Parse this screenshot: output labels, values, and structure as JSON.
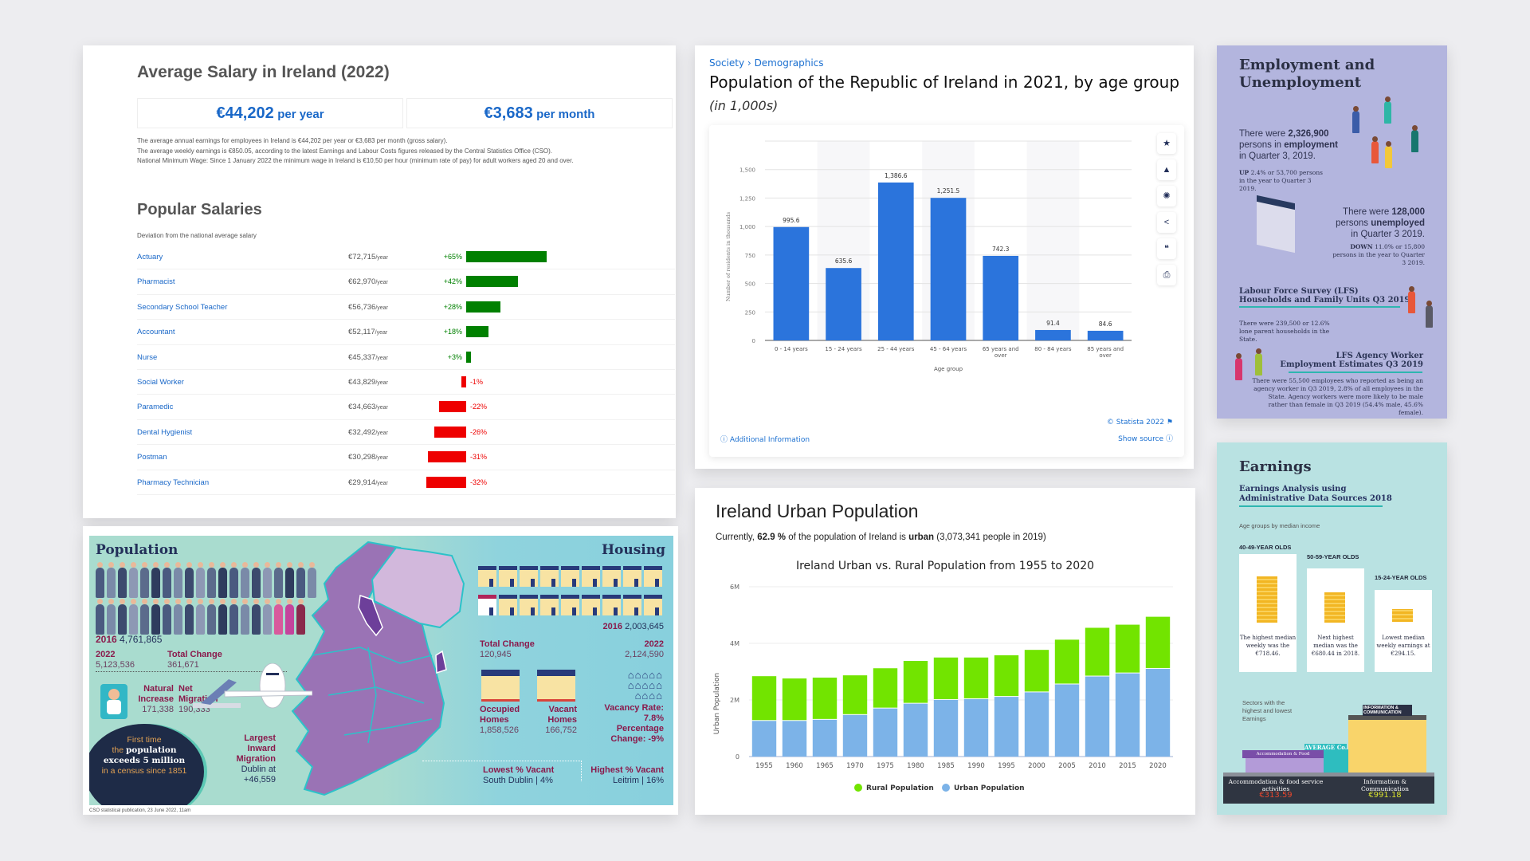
{
  "salary": {
    "title": "Average Salary in Ireland (2022)",
    "per_year_value": "€44,202",
    "per_year_unit": "per year",
    "per_month_value": "€3,683",
    "per_month_unit": "per month",
    "notes": [
      "The average annual earnings for employees in Ireland is €44,202 per year or €3,683 per month (gross salary).",
      "The average weekly earnings is €850.05, according to the latest Earnings and Labour Costs figures released by the Central Statistics Office (CSO).",
      "National Minimum Wage: Since 1 January 2022 the minimum wage in Ireland is €10,50 per hour (minimum rate of pay) for adult workers aged 20 and over."
    ],
    "popular_title": "Popular Salaries",
    "deviation_label": "Deviation from the national average salary",
    "year_suffix": "/year",
    "rows": [
      {
        "job": "Actuary",
        "amount": "€72,715",
        "pct": 65,
        "pct_label": "+65%"
      },
      {
        "job": "Pharmacist",
        "amount": "€62,970",
        "pct": 42,
        "pct_label": "+42%"
      },
      {
        "job": "Secondary School Teacher",
        "amount": "€56,736",
        "pct": 28,
        "pct_label": "+28%"
      },
      {
        "job": "Accountant",
        "amount": "€52,117",
        "pct": 18,
        "pct_label": "+18%"
      },
      {
        "job": "Nurse",
        "amount": "€45,337",
        "pct": 3,
        "pct_label": "+3%"
      },
      {
        "job": "Social Worker",
        "amount": "€43,829",
        "pct": -1,
        "pct_label": "-1%"
      },
      {
        "job": "Paramedic",
        "amount": "€34,663",
        "pct": -22,
        "pct_label": "-22%"
      },
      {
        "job": "Dental Hygienist",
        "amount": "€32,492",
        "pct": -26,
        "pct_label": "-26%"
      },
      {
        "job": "Postman",
        "amount": "€30,298",
        "pct": -31,
        "pct_label": "-31%"
      },
      {
        "job": "Pharmacy Technician",
        "amount": "€29,914",
        "pct": -32,
        "pct_label": "-32%"
      }
    ],
    "colors": {
      "positive": "#008000",
      "negative": "#ee0000",
      "link": "#1a68c8"
    }
  },
  "cso": {
    "population_heading": "Population",
    "housing_heading": "Housing",
    "pop_2016_label": "2016",
    "pop_2016_value": "4,761,865",
    "pop_2022_label": "2022",
    "pop_2022_value": "5,123,536",
    "pop_change_label": "Total Change",
    "pop_change_value": "361,671",
    "natural_increase_label": "Natural Increase",
    "natural_increase_value": "171,338",
    "net_migration_label": "Net Migration",
    "net_migration_value": "190,333",
    "callout_line1": "First time",
    "callout_line2_pre": "the",
    "callout_line2_bold": "population",
    "callout_line3": "exceeds 5 million",
    "callout_line4": "in a census since 1851",
    "inward_label": "Largest Inward Migration",
    "inward_value": "Dublin at +46,559",
    "housing_2016_label": "2016",
    "housing_2016_value": "2,003,645",
    "housing_change_label": "Total Change",
    "housing_change_value": "120,945",
    "housing_2022_label": "2022",
    "housing_2022_value": "2,124,590",
    "occupied_label": "Occupied Homes",
    "occupied_value": "1,858,526",
    "vacant_label": "Vacant Homes",
    "vacant_value": "166,752",
    "vacancy_rate": "Vacancy Rate: 7.8%",
    "vacancy_change": "Percentage Change: -9%",
    "lowest_label": "Lowest % Vacant",
    "lowest_value": "South Dublin | 4%",
    "highest_label": "Highest % Vacant",
    "highest_value": "Leitrim | 16%",
    "footnote": "CSO statistical publication, 23 June 2022, 11am"
  },
  "statista": {
    "breadcrumb_1": "Society",
    "breadcrumb_sep": "›",
    "breadcrumb_2": "Demographics",
    "title": "Population of the Republic of Ireland in 2021, by age group",
    "unit": "(in 1,000s)",
    "icons": [
      "star-icon",
      "bell-icon",
      "gear-icon",
      "share-icon",
      "quote-icon",
      "print-icon"
    ],
    "additional_info": "Additional Information",
    "copyright": "© Statista 2022",
    "show_source": "Show source"
  },
  "urban": {
    "title": "Ireland Urban Population",
    "desc_pre": "Currently,",
    "desc_pct": "62.9 %",
    "desc_mid": "of the population of Ireland is",
    "desc_urban": "urban",
    "desc_post": "(3,073,341 people in 2019)"
  },
  "employment": {
    "title": "Employment and Unemployment",
    "emp_pre": "There were",
    "emp_value": "2,326,900",
    "emp_mid": "persons in",
    "emp_bold": "employment",
    "emp_post": "in Quarter 3, 2019.",
    "emp_up_bold": "UP",
    "emp_up": "2.4% or 53,700 persons in the year to Quarter 3 2019.",
    "unemp_pre": "There were",
    "unemp_value": "128,000",
    "unemp_mid": "persons",
    "unemp_bold": "unemployed",
    "unemp_post": "in Quarter 3 2019.",
    "unemp_down_bold": "DOWN",
    "unemp_down": "11.0% or 15,800 persons in the year to Quarter 3 2019.",
    "lfs_title_1": "Labour Force Survey (LFS)",
    "lfs_title_2": "Households and Family Units Q3 2019",
    "lfs_text": "There were 239,500 or 12.6% lone parent households in the State.",
    "agency_title_1": "LFS Agency Worker",
    "agency_title_2": "Employment Estimates Q3 2019",
    "agency_text": "There were 55,500 employees who reported as being an agency worker in Q3 2019, 2.8% of all employees in the State. Agency workers were more likely to be male rather than female in Q3 2019 (54.4% male, 45.6% female)."
  },
  "earnings": {
    "title": "Earnings",
    "subtitle_1": "Earnings Analysis using",
    "subtitle_2": "Administrative Data Sources 2018",
    "age_caption": "Age groups by median income",
    "groups": [
      {
        "label": "40-49-YEAR OLDS",
        "caption": "The highest median weekly was the €718.46."
      },
      {
        "label": "50-59-YEAR OLDS",
        "caption": "Next highest median was the €680.44 in 2018."
      },
      {
        "label": "15-24-YEAR OLDS",
        "caption": "Lowest median weekly earnings at €294.15."
      }
    ],
    "sectors_caption": "Sectors with the highest and lowest Earnings",
    "shop_sign": "Accommodation & Food",
    "avg_sign": "AVERAGE Co.",
    "office_sign": "INFORMATION & COMMUNICATION",
    "low_sector": "Accommodation & food service activities",
    "low_value": "€313.59",
    "high_sector": "Information & Communication",
    "high_value": "€991.18"
  },
  "chart_data": [
    {
      "type": "bar",
      "title": "Population of the Republic of Ireland in 2021, by age group",
      "categories": [
        "0 - 14 years",
        "15 - 24 years",
        "25 - 44 years",
        "45 - 64 years",
        "65 years and over",
        "80 - 84 years",
        "85 years and over"
      ],
      "values": [
        995.6,
        635.6,
        1386.6,
        1251.5,
        742.3,
        91.4,
        84.6
      ],
      "value_labels": [
        "995.6",
        "635.6",
        "1,386.6",
        "1,251.5",
        "742.3",
        "91.4",
        "84.6"
      ],
      "xlabel": "Age group",
      "ylabel": "Number of residents in thousands",
      "ylim": [
        0,
        1750
      ],
      "yticks": [
        0,
        250,
        500,
        750,
        1000,
        1250,
        1500
      ],
      "ytick_labels": [
        "0",
        "250",
        "500",
        "750",
        "1,000",
        "1,250",
        "1,500"
      ],
      "grid": true,
      "color": "#2b74dc"
    },
    {
      "type": "bar",
      "stacked": true,
      "title": "Ireland Urban vs. Rural Population from 1955 to 2020",
      "categories": [
        "1955",
        "1960",
        "1965",
        "1970",
        "1975",
        "1980",
        "1985",
        "1990",
        "1995",
        "2000",
        "2005",
        "2010",
        "2015",
        "2020"
      ],
      "series": [
        {
          "name": "Urban Population",
          "color": "#7cb3e8",
          "values": [
            1.26,
            1.26,
            1.3,
            1.47,
            1.7,
            1.87,
            2.0,
            2.03,
            2.11,
            2.27,
            2.55,
            2.83,
            2.94,
            3.1
          ]
        },
        {
          "name": "Rural Population",
          "color": "#72e400",
          "values": [
            1.58,
            1.5,
            1.49,
            1.4,
            1.42,
            1.51,
            1.5,
            1.47,
            1.47,
            1.5,
            1.58,
            1.72,
            1.72,
            1.84
          ]
        }
      ],
      "legend_order": [
        "Rural Population",
        "Urban Population"
      ],
      "ylabel": "Urban Population",
      "ylim": [
        0,
        6
      ],
      "yticks": [
        0,
        2,
        4,
        6
      ],
      "ytick_labels": [
        "0",
        "2M",
        "4M",
        "6M"
      ],
      "legend": "bottom",
      "grid": true
    }
  ]
}
